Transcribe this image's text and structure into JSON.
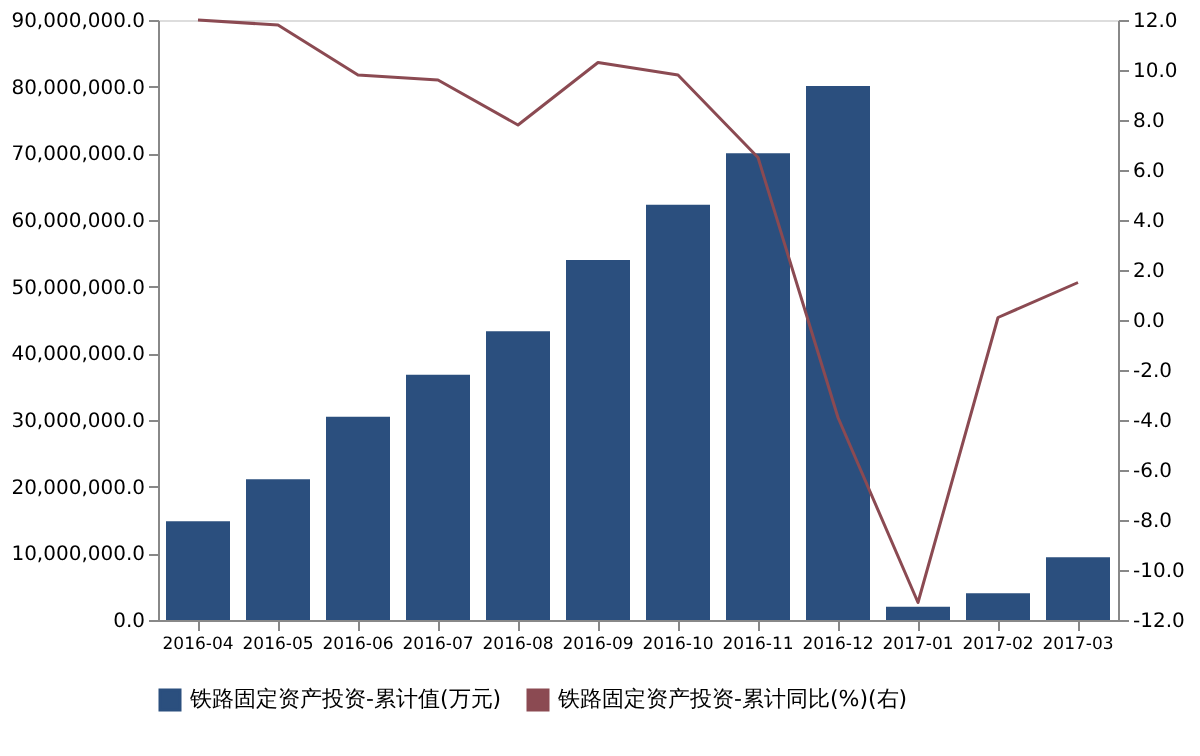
{
  "chart_data": {
    "type": "bar",
    "categories": [
      "2016-04",
      "2016-05",
      "2016-06",
      "2016-07",
      "2016-08",
      "2016-09",
      "2016-10",
      "2016-11",
      "2016-12",
      "2017-01",
      "2017-02",
      "2017-03"
    ],
    "series": [
      {
        "name": "铁路固定资产投资-累计值(万元)",
        "color": "#2b4f7e",
        "values": [
          14800000,
          21100000,
          30500000,
          36800000,
          43300000,
          54000000,
          62300000,
          70000000,
          80100000,
          2000000,
          4000000,
          9400000
        ]
      },
      {
        "name": "铁路固定资产投资-累计同比(%)(右)",
        "type": "line",
        "axis": "y2",
        "color": "#8b4a52",
        "values": [
          12.0,
          11.8,
          9.8,
          9.6,
          7.8,
          10.3,
          9.8,
          6.5,
          -3.9,
          -11.3,
          0.1,
          1.5
        ]
      }
    ],
    "ylim": [
      0,
      90000000
    ],
    "yticks": [
      {
        "value": 0,
        "label": "0.0"
      },
      {
        "value": 10000000,
        "label": "10,000,000.0"
      },
      {
        "value": 20000000,
        "label": "20,000,000.0"
      },
      {
        "value": 30000000,
        "label": "30,000,000.0"
      },
      {
        "value": 40000000,
        "label": "40,000,000.0"
      },
      {
        "value": 50000000,
        "label": "50,000,000.0"
      },
      {
        "value": 60000000,
        "label": "60,000,000.0"
      },
      {
        "value": 70000000,
        "label": "70,000,000.0"
      },
      {
        "value": 80000000,
        "label": "80,000,000.0"
      },
      {
        "value": 90000000,
        "label": "90,000,000.0"
      }
    ],
    "y2lim": [
      -12,
      12
    ],
    "y2ticks": [
      {
        "value": -12,
        "label": "-12.0"
      },
      {
        "value": -10,
        "label": "-10.0"
      },
      {
        "value": -8,
        "label": "-8.0"
      },
      {
        "value": -6,
        "label": "-6.0"
      },
      {
        "value": -4,
        "label": "-4.0"
      },
      {
        "value": -2,
        "label": "-2.0"
      },
      {
        "value": 0,
        "label": "0.0"
      },
      {
        "value": 2,
        "label": "2.0"
      },
      {
        "value": 4,
        "label": "4.0"
      },
      {
        "value": 6,
        "label": "6.0"
      },
      {
        "value": 8,
        "label": "8.0"
      },
      {
        "value": 10,
        "label": "10.0"
      },
      {
        "value": 12,
        "label": "12.0"
      }
    ],
    "grid": false,
    "legend": "bottom",
    "marker": "none",
    "line_style": "solid"
  }
}
